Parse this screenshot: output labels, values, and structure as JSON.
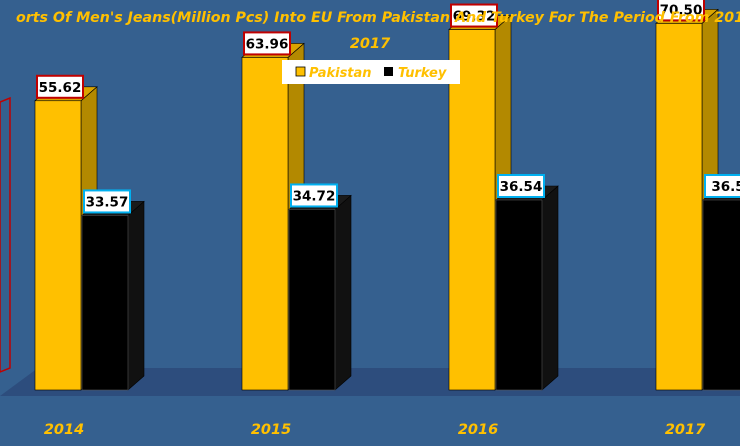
{
  "chart_data": {
    "type": "bar",
    "title_line1": "orts Of Men's Jeans(Million Pcs) Into EU From Pakistan And Turkey For The Period From 201",
    "title_line2": "2017",
    "categories": [
      "2014",
      "2015",
      "2016",
      "2017"
    ],
    "series": [
      {
        "name": "Pakistan",
        "values": [
          55.62,
          63.96,
          69.32,
          70.5
        ],
        "labels": [
          "55.62",
          "63.96",
          "69.32",
          "70.50"
        ]
      },
      {
        "name": "Turkey",
        "values": [
          33.57,
          34.72,
          36.54,
          36.54
        ],
        "labels": [
          "33.57",
          "34.72",
          "36.54",
          "36.5"
        ]
      }
    ],
    "ylim": [
      0,
      100
    ],
    "legend_position": "top",
    "grid": false,
    "style": "3d-clustered-column"
  },
  "colors": {
    "background": "#35608f",
    "floor": "#2d4d7d",
    "pakistan_front": "#ffc000",
    "pakistan_side": "#b38900",
    "pakistan_top": "#d9a400",
    "turkey_front": "#000000",
    "turkey_side": "#111111",
    "text": "#ffc000",
    "pakistan_label_border": "#c00000",
    "turkey_label_border": "#00b0f0"
  }
}
